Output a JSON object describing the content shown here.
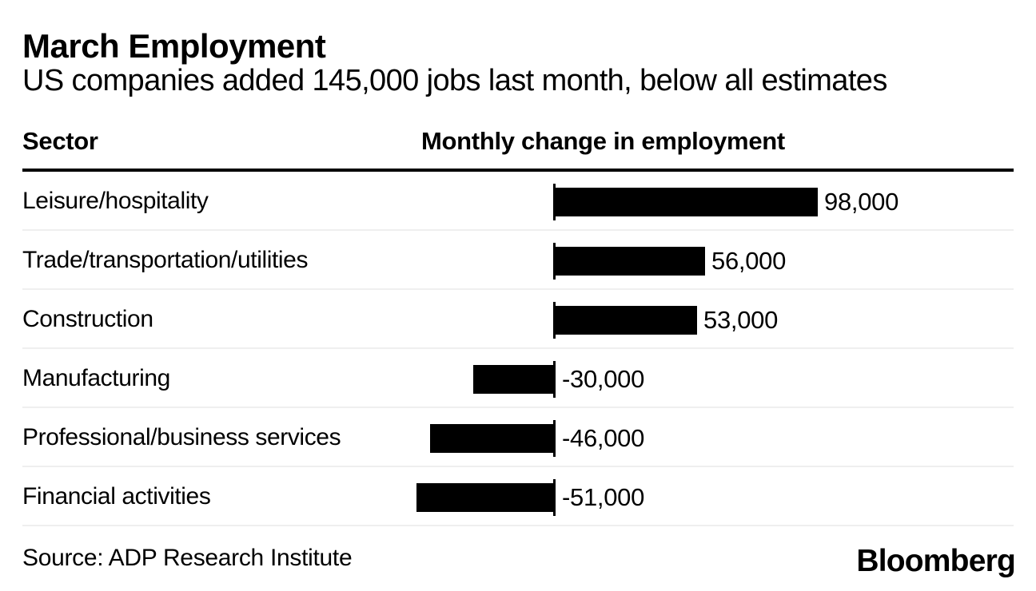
{
  "chart": {
    "title": "March Employment",
    "subtitle": "US companies added 145,000 jobs last month, below all estimates",
    "col_headers": {
      "sector": "Sector",
      "change": "Monthly change in employment"
    }
  },
  "chart_data": {
    "type": "bar",
    "orientation": "horizontal",
    "title": "March Employment",
    "subtitle": "US companies added 145,000 jobs last month, below all estimates",
    "x_axis_label": "Monthly change in employment",
    "y_axis_label": "Sector",
    "categories": [
      "Leisure/hospitality",
      "Trade/transportation/utilities",
      "Construction",
      "Manufacturing",
      "Professional/business services",
      "Financial activities"
    ],
    "values": [
      98000,
      56000,
      53000,
      -30000,
      -46000,
      -51000
    ],
    "value_labels": [
      "98,000",
      "56,000",
      "53,000",
      "-30,000",
      "-46,000",
      "-51,000"
    ],
    "xlim": [
      -51000,
      98000
    ],
    "grid": false,
    "legend": "none",
    "bar_color": "#000000",
    "separator_color": "#efefef"
  },
  "footer": {
    "source": "Source: ADP Research Institute",
    "brand": "Bloomberg"
  }
}
